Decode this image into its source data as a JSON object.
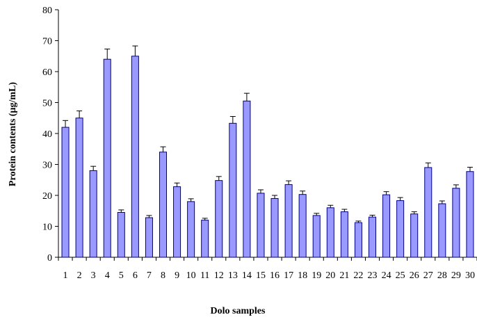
{
  "chart_data": {
    "type": "bar",
    "categories": [
      "1",
      "2",
      "3",
      "4",
      "5",
      "6",
      "7",
      "8",
      "9",
      "10",
      "11",
      "12",
      "13",
      "14",
      "15",
      "16",
      "17",
      "18",
      "19",
      "20",
      "21",
      "22",
      "23",
      "24",
      "25",
      "26",
      "27",
      "28",
      "29",
      "30"
    ],
    "values": [
      42,
      45,
      28,
      64,
      14.5,
      65,
      12.8,
      34,
      22.8,
      18,
      12,
      24.8,
      43.3,
      50.5,
      20.7,
      19,
      23.5,
      20.3,
      13.5,
      16,
      14.7,
      11.2,
      13,
      20.2,
      18.3,
      14,
      29,
      17.3,
      22.3,
      27.7
    ],
    "errors": [
      2.2,
      2.3,
      1.4,
      3.3,
      0.8,
      3.3,
      0.7,
      1.7,
      1.2,
      0.9,
      0.6,
      1.3,
      2.2,
      2.5,
      1.1,
      1.0,
      1.2,
      1.1,
      0.7,
      0.8,
      0.8,
      0.5,
      0.6,
      1.0,
      1.0,
      0.7,
      1.5,
      0.9,
      1.1,
      1.4
    ],
    "title": "",
    "xlabel": "Dolo samples",
    "ylabel": "Protein contents (µg/mL)",
    "ylim": [
      0,
      80
    ],
    "yticks": [
      "0",
      "10",
      "20",
      "30",
      "40",
      "50",
      "60",
      "70",
      "80"
    ],
    "grid": false,
    "bar_color": "#9999ff",
    "bar_outline": "#000080"
  }
}
